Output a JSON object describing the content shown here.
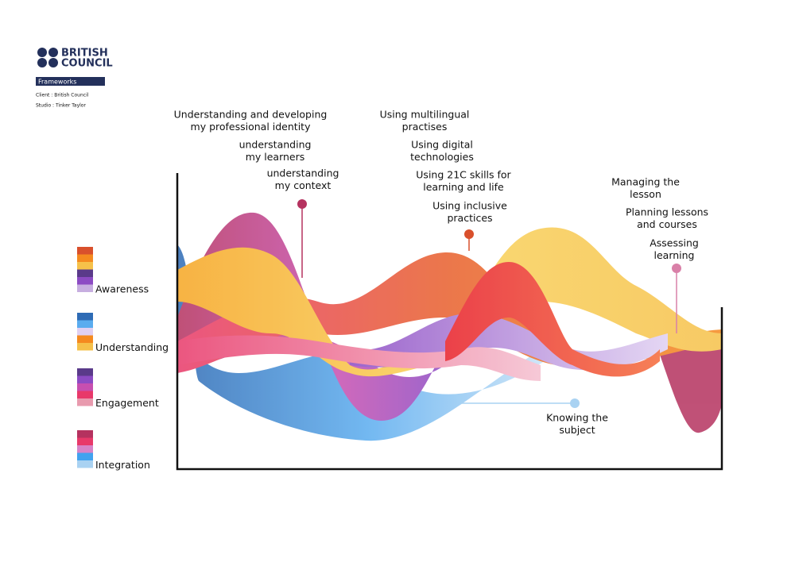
{
  "header": {
    "brand": [
      "BRITISH",
      "COUNCIL"
    ],
    "tag": "Frameworks",
    "client": "Client : British Council",
    "studio": "Studio : Tinker Taylor"
  },
  "legend": [
    {
      "name": "Awareness",
      "colors": [
        "#d9502c",
        "#f58a1f",
        "#f6c14a",
        "#5a3a8a",
        "#8c4bc4",
        "#c7aee0"
      ]
    },
    {
      "name": "Understanding",
      "colors": [
        "#2e6bb5",
        "#5aacef",
        "#e0d0f2",
        "#f58a1f",
        "#f6c14a"
      ]
    },
    {
      "name": "Engagement",
      "colors": [
        "#5a3a8a",
        "#8c4bc4",
        "#c74fb0",
        "#e8396a",
        "#e89aae"
      ]
    },
    {
      "name": "Integration",
      "colors": [
        "#b5325f",
        "#e8396a",
        "#d783c8",
        "#41a2ef",
        "#a9d2f2"
      ]
    }
  ],
  "labels": [
    {
      "lines": [
        "Understanding and developing",
        "my professional identity"
      ]
    },
    {
      "lines": [
        "understanding",
        "my learners"
      ]
    },
    {
      "lines": [
        "understanding",
        "my context"
      ]
    },
    {
      "lines": [
        "Using multilingual",
        "practises"
      ]
    },
    {
      "lines": [
        "Using digital",
        "technologies"
      ]
    },
    {
      "lines": [
        "Using 21C skills for",
        "learning and life"
      ]
    },
    {
      "lines": [
        "Using inclusive",
        "practices"
      ]
    },
    {
      "lines": [
        "Managing the",
        "lesson"
      ]
    },
    {
      "lines": [
        "Planning lessons",
        "and courses"
      ]
    },
    {
      "lines": [
        "Assessing",
        "learning"
      ]
    },
    {
      "lines": [
        "Knowing the",
        "subject"
      ]
    }
  ]
}
